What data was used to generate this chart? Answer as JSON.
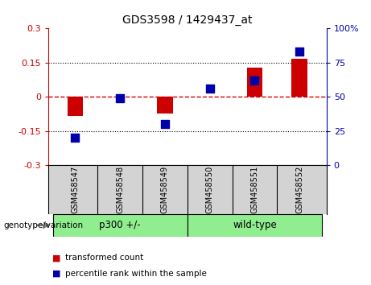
{
  "title": "GDS3598 / 1429437_at",
  "samples": [
    "GSM458547",
    "GSM458548",
    "GSM458549",
    "GSM458550",
    "GSM458551",
    "GSM458552"
  ],
  "red_values": [
    -0.082,
    0.002,
    -0.072,
    0.001,
    0.128,
    0.168
  ],
  "blue_values": [
    20,
    49,
    30,
    56,
    62,
    83
  ],
  "group_label": "genotype/variation",
  "group_p300_label": "p300 +/-",
  "group_wt_label": "wild-type",
  "group_color": "#90EE90",
  "left_ylim": [
    -0.3,
    0.3
  ],
  "right_ylim": [
    0,
    100
  ],
  "left_yticks": [
    -0.3,
    -0.15,
    0,
    0.15,
    0.3
  ],
  "right_yticks": [
    0,
    25,
    50,
    75,
    100
  ],
  "red_color": "#CC0000",
  "blue_color": "#0000AA",
  "bar_width": 0.35,
  "blue_marker_size": 55,
  "legend_red": "transformed count",
  "legend_blue": "percentile rank within the sample",
  "sample_bg": "#d3d3d3",
  "plot_bg": "#ffffff"
}
